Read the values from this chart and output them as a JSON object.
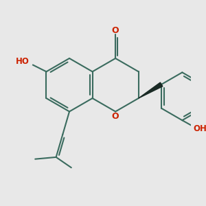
{
  "bg_color": "#e8e8e8",
  "bond_color": "#3a6b5e",
  "bond_dark": "#1a2a25",
  "o_color": "#cc2200",
  "lw": 1.5,
  "figsize": [
    3.0,
    3.0
  ],
  "dpi": 100,
  "xlim": [
    0,
    10
  ],
  "ylim": [
    0,
    10
  ]
}
